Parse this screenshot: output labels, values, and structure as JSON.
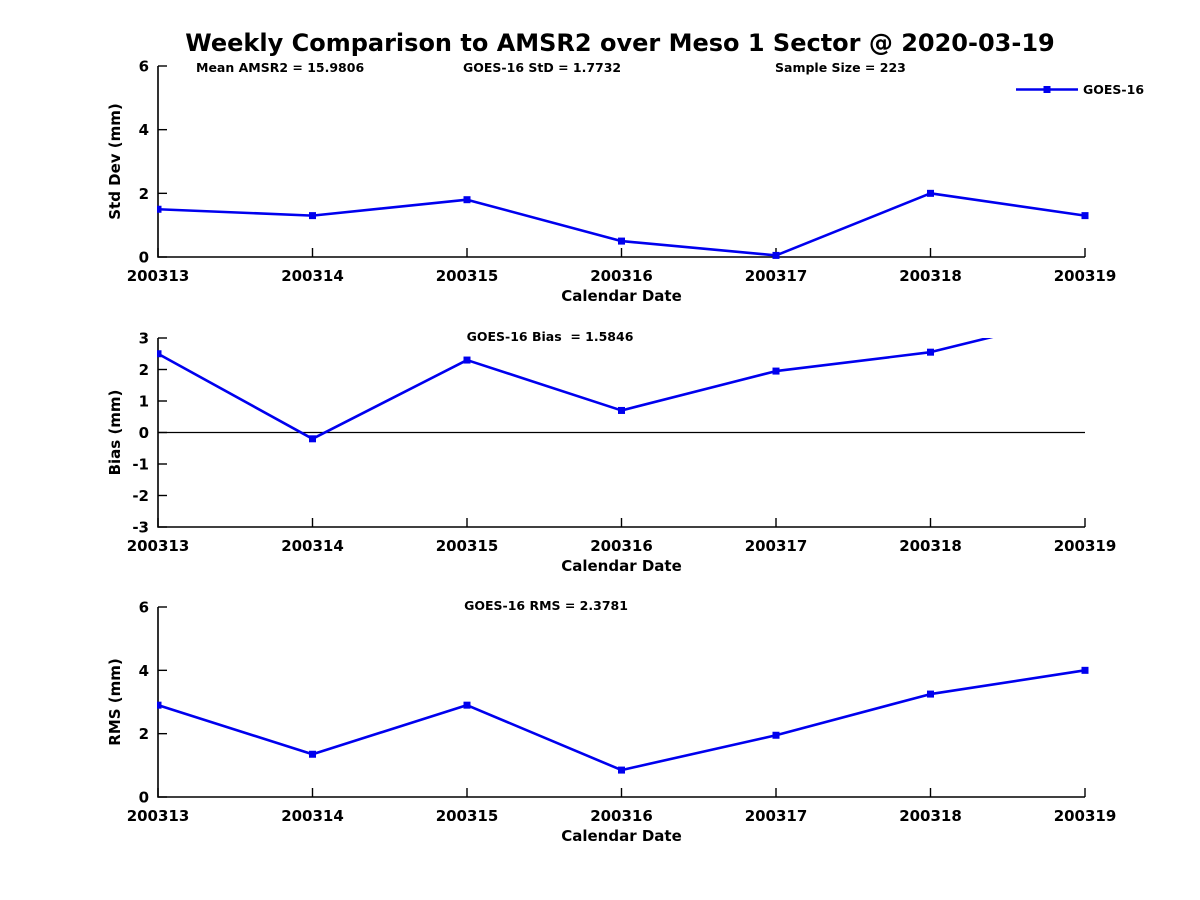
{
  "title": "Weekly Comparison to AMSR2 over Meso 1 Sector @ 2020-03-19",
  "header_stats": {
    "mean_amsr2": "Mean AMSR2 = 15.9806",
    "goes16_std": "GOES-16 StD = 1.7732",
    "sample_size": "Sample Size = 223"
  },
  "legend": {
    "label": "GOES-16",
    "position": "top-right-of-first-subplot",
    "marker": "filled-square"
  },
  "colors": {
    "series": "#0000EE",
    "axis": "#000000",
    "text": "#000000",
    "zero_line": "#000000",
    "background": "#FFFFFF"
  },
  "chart_data": [
    {
      "type": "line",
      "subplot": "Std Dev",
      "categories": [
        "200313",
        "200314",
        "200315",
        "200316",
        "200317",
        "200318",
        "200319"
      ],
      "series": [
        {
          "name": "GOES-16",
          "values": [
            1.5,
            1.3,
            1.8,
            0.5,
            0.05,
            2.0,
            1.3
          ]
        }
      ],
      "xlabel": "Calendar Date",
      "ylabel": "Std Dev (mm)",
      "ylim": [
        0,
        6
      ],
      "yticks": [
        0,
        2,
        4,
        6
      ],
      "annotation": "",
      "zero_line": false,
      "grid": false,
      "marker": "filled-square"
    },
    {
      "type": "line",
      "subplot": "Bias",
      "categories": [
        "200313",
        "200314",
        "200315",
        "200316",
        "200317",
        "200318",
        "200319"
      ],
      "series": [
        {
          "name": "GOES-16",
          "values": [
            2.5,
            -0.2,
            2.3,
            0.7,
            1.95,
            2.55,
            3.76
          ]
        }
      ],
      "xlabel": "Calendar Date",
      "ylabel": "Bias (mm)",
      "ylim": [
        -3,
        3
      ],
      "yticks": [
        -3,
        -2,
        -1,
        0,
        1,
        2,
        3
      ],
      "annotation": "GOES-16 Bias  = 1.5846",
      "zero_line": true,
      "grid": false,
      "marker": "filled-square",
      "clip_note": "final point exceeds ymax 3; line is clipped at the top boundary and its marker is not drawn"
    },
    {
      "type": "line",
      "subplot": "RMS",
      "categories": [
        "200313",
        "200314",
        "200315",
        "200316",
        "200317",
        "200318",
        "200319"
      ],
      "series": [
        {
          "name": "GOES-16",
          "values": [
            2.9,
            1.35,
            2.9,
            0.85,
            1.95,
            3.25,
            4.0
          ]
        }
      ],
      "xlabel": "Calendar Date",
      "ylabel": "RMS (mm)",
      "ylim": [
        0,
        6
      ],
      "yticks": [
        0,
        2,
        4,
        6
      ],
      "annotation": "GOES-16 RMS = 2.3781",
      "zero_line": false,
      "grid": false,
      "marker": "filled-square"
    }
  ]
}
